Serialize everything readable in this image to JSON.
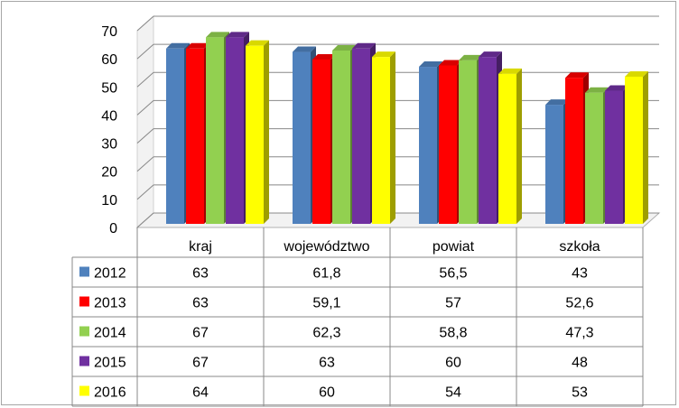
{
  "chart_data": {
    "type": "bar",
    "categories": [
      "kraj",
      "województwo",
      "powiat",
      "szkoła"
    ],
    "series": [
      {
        "name": "2012",
        "color": "#4f81bd",
        "values": [
          63,
          61.8,
          56.5,
          43
        ],
        "labels": [
          "63",
          "61,8",
          "56,5",
          "43"
        ]
      },
      {
        "name": "2013",
        "color": "#ff0000",
        "values": [
          63,
          59.1,
          57,
          52.6
        ],
        "labels": [
          "63",
          "59,1",
          "57",
          "52,6"
        ]
      },
      {
        "name": "2014",
        "color": "#92d050",
        "values": [
          67,
          62.3,
          58.8,
          47.3
        ],
        "labels": [
          "67",
          "62,3",
          "58,8",
          "47,3"
        ]
      },
      {
        "name": "2015",
        "color": "#7030a0",
        "values": [
          67,
          63,
          60,
          48
        ],
        "labels": [
          "67",
          "63",
          "60",
          "48"
        ]
      },
      {
        "name": "2016",
        "color": "#ffff00",
        "values": [
          64,
          60,
          54,
          53
        ],
        "labels": [
          "64",
          "60",
          "54",
          "53"
        ]
      }
    ],
    "ylim": [
      0,
      70
    ],
    "yticks": [
      "0",
      "10",
      "20",
      "30",
      "40",
      "50",
      "60",
      "70"
    ],
    "grid": true,
    "style": "3d-clustered-column",
    "legend": "data-table"
  }
}
